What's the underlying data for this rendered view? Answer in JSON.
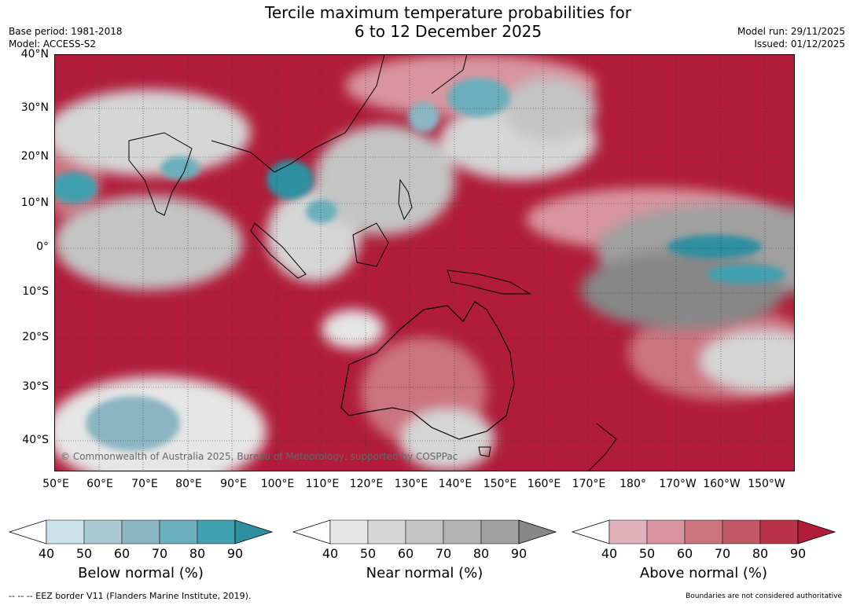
{
  "title": {
    "line1": "Tercile maximum temperature probabilities for",
    "line2": "6 to 12 December 2025"
  },
  "meta": {
    "base_period": "Base period: 1981-2018",
    "model": "Model: ACCESS-S2",
    "model_run": "Model run: 29/11/2025",
    "issued": "Issued: 01/12/2025"
  },
  "map": {
    "lat_labels": [
      "40°N",
      "30°N",
      "20°N",
      "10°N",
      "0°",
      "10°S",
      "20°S",
      "30°S",
      "40°S"
    ],
    "lon_labels": [
      "50°E",
      "60°E",
      "70°E",
      "80°E",
      "90°E",
      "100°E",
      "110°E",
      "120°E",
      "130°E",
      "140°E",
      "150°E",
      "160°E",
      "170°E",
      "180°",
      "170°W",
      "160°W",
      "150°W"
    ],
    "copyright": "© Commonwealth of Australia 2025, Bureau of Meteorology, supported by COSPPac",
    "region": "Indo-Pacific, 50°E–145°W, 47°S–40°N",
    "colors": {
      "above_dominant": "#b01c3a",
      "near_dominant": "#888888",
      "below_dominant": "#2e8fa0"
    }
  },
  "colorbars": [
    {
      "label": "Below normal (%)",
      "ticks": [
        "40",
        "50",
        "60",
        "70",
        "80",
        "90"
      ],
      "colors": [
        "#ffffff",
        "#cde3ea",
        "#a9cad3",
        "#8bb5c2",
        "#6aafbb",
        "#40a0b0",
        "#2e8fa0"
      ]
    },
    {
      "label": "Near normal (%)",
      "ticks": [
        "40",
        "50",
        "60",
        "70",
        "80",
        "90"
      ],
      "colors": [
        "#ffffff",
        "#e6e6e6",
        "#d6d6d6",
        "#c4c4c4",
        "#b3b3b3",
        "#a0a0a0",
        "#878787"
      ]
    },
    {
      "label": "Above normal (%)",
      "ticks": [
        "40",
        "50",
        "60",
        "70",
        "80",
        "90"
      ],
      "colors": [
        "#ffffff",
        "#e0b3bc",
        "#d8959f",
        "#cc7380",
        "#c25766",
        "#b83248",
        "#b01c3a"
      ]
    }
  ],
  "footer": {
    "eez": "--  --  -- EEZ border V11 (Flanders Marine Institute, 2019).",
    "disclaimer": "Boundaries are not considered authoritative"
  }
}
